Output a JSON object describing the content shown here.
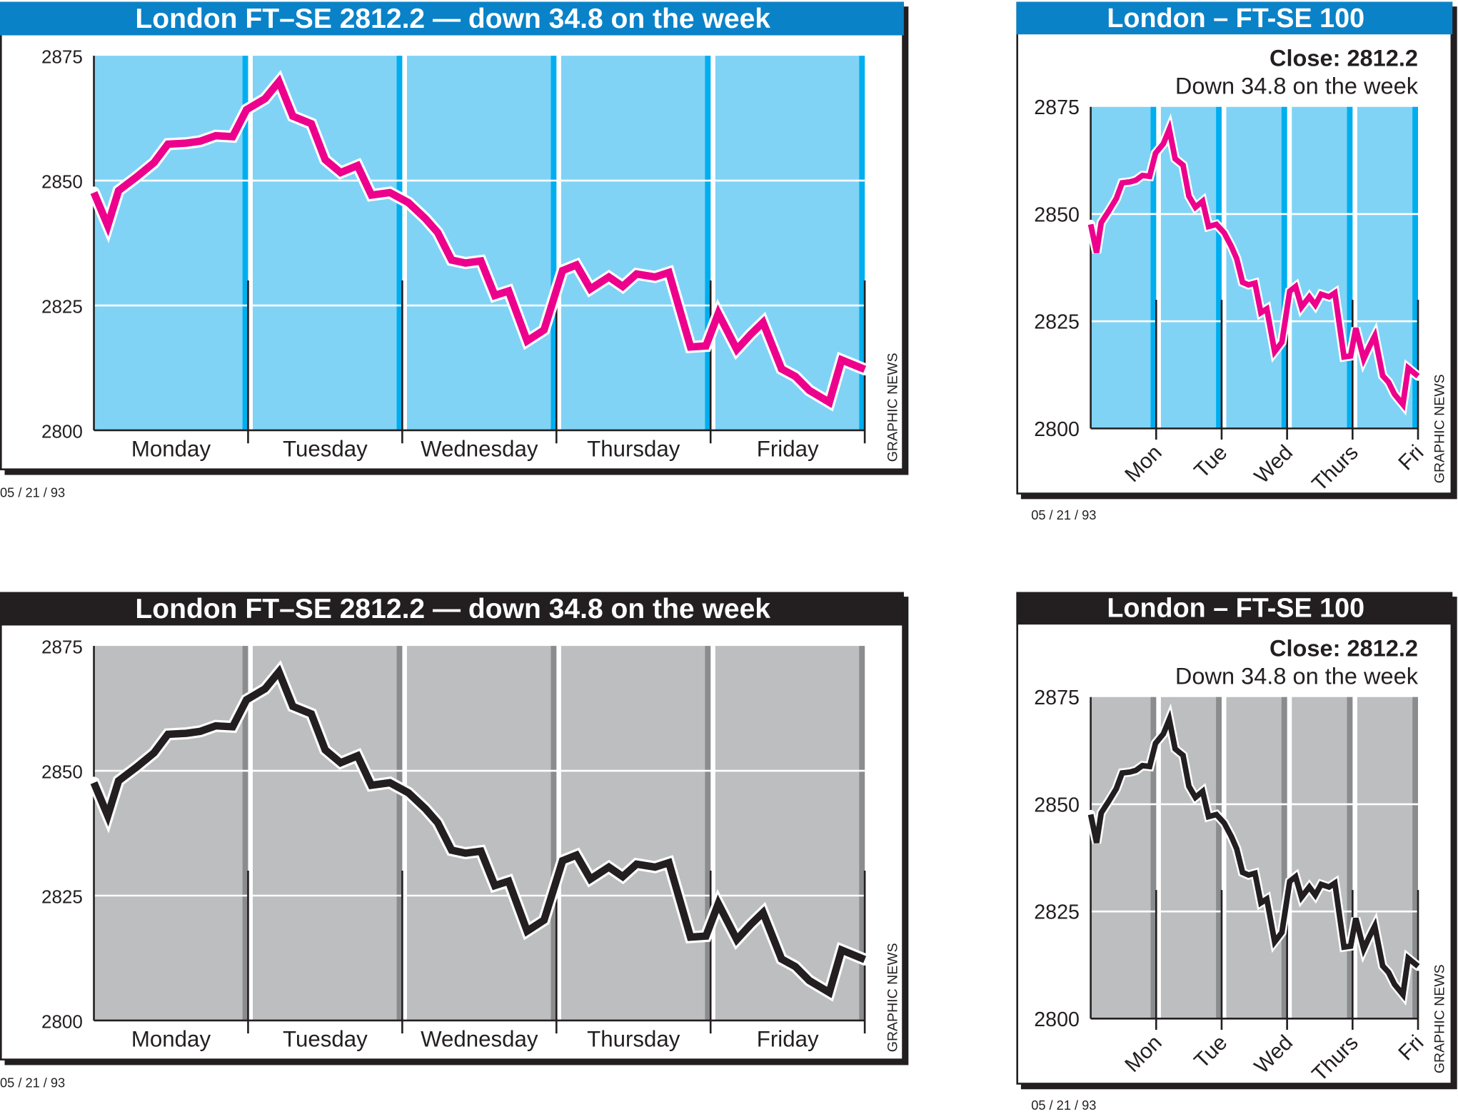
{
  "themes": {
    "color": {
      "header": "#0a82c8",
      "column": "#80d3f5",
      "strip": "#00aeef",
      "line": "#ec008c"
    },
    "mono": {
      "header": "#231f20",
      "column": "#bcbec0",
      "strip": "#8a8c8e",
      "line": "#231f20"
    }
  },
  "chart_data": [
    {
      "type": "line",
      "theme": "color",
      "variant": "wide",
      "title": "London FT–SE 2812.2 — down 34.8 on the week",
      "yticks": [
        "2875",
        "2850",
        "2825",
        "2800"
      ],
      "ylim": [
        2800,
        2875
      ],
      "categories": [
        "Monday",
        "Tuesday",
        "Wednesday",
        "Thursday",
        "Friday"
      ],
      "credit": "GRAPHIC NEWS",
      "date": "05 / 21 / 93",
      "grid": true
    },
    {
      "type": "line",
      "theme": "color",
      "variant": "narrow",
      "title": "London – FT-SE 100",
      "subtitle_bold": "Close: 2812.2",
      "subtitle": "Down 34.8 on the week",
      "yticks": [
        "2875",
        "2850",
        "2825",
        "2800"
      ],
      "ylim": [
        2800,
        2875
      ],
      "categories": [
        "Mon",
        "Tue",
        "Wed",
        "Thurs",
        "Fri"
      ],
      "credit": "GRAPHIC NEWS",
      "date": "05 / 21 / 93",
      "grid": true
    },
    {
      "type": "line",
      "theme": "mono",
      "variant": "wide",
      "title": "London FT–SE 2812.2 — down 34.8 on the week",
      "yticks": [
        "2875",
        "2850",
        "2825",
        "2800"
      ],
      "ylim": [
        2800,
        2875
      ],
      "categories": [
        "Monday",
        "Tuesday",
        "Wednesday",
        "Thursday",
        "Friday"
      ],
      "credit": "GRAPHIC NEWS",
      "date": "05 / 21 / 93",
      "grid": true
    },
    {
      "type": "line",
      "theme": "mono",
      "variant": "narrow",
      "title": "London – FT-SE 100",
      "subtitle_bold": "Close: 2812.2",
      "subtitle": "Down 34.8 on the week",
      "yticks": [
        "2875",
        "2850",
        "2825",
        "2800"
      ],
      "ylim": [
        2800,
        2875
      ],
      "categories": [
        "Mon",
        "Tue",
        "Wed",
        "Thurs",
        "Fri"
      ],
      "credit": "GRAPHIC NEWS",
      "date": "05 / 21 / 93",
      "grid": true
    }
  ],
  "series": {
    "name": "FT-SE 100",
    "x_days": [
      0,
      0.09,
      0.16,
      0.28,
      0.39,
      0.48,
      0.6,
      0.69,
      0.79,
      0.9,
      0.99,
      1.11,
      1.2,
      1.29,
      1.41,
      1.5,
      1.6,
      1.71,
      1.8,
      1.92,
      2.04,
      2.15,
      2.23,
      2.32,
      2.41,
      2.51,
      2.6,
      2.69,
      2.81,
      2.92,
      3.04,
      3.13,
      3.22,
      3.34,
      3.43,
      3.52,
      3.64,
      3.73,
      3.87,
      3.97,
      4.05,
      4.17,
      4.26,
      4.34,
      4.46,
      4.55,
      4.64,
      4.77,
      4.85,
      5.0
    ],
    "values": [
      2847.6,
      2841.0,
      2848.0,
      2850.8,
      2853.6,
      2857.3,
      2857.5,
      2857.9,
      2859.0,
      2858.8,
      2864.2,
      2866.4,
      2869.8,
      2862.9,
      2861.4,
      2854.2,
      2851.6,
      2853.0,
      2847.1,
      2847.6,
      2845.6,
      2842.4,
      2839.6,
      2834.1,
      2833.5,
      2833.9,
      2827.0,
      2827.9,
      2817.9,
      2820.1,
      2832.0,
      2833.1,
      2828.3,
      2830.7,
      2828.8,
      2831.3,
      2830.7,
      2831.6,
      2816.7,
      2816.9,
      2823.4,
      2816.2,
      2819.2,
      2821.6,
      2812.3,
      2810.8,
      2808.0,
      2805.6,
      2814.1,
      2812.2
    ]
  }
}
